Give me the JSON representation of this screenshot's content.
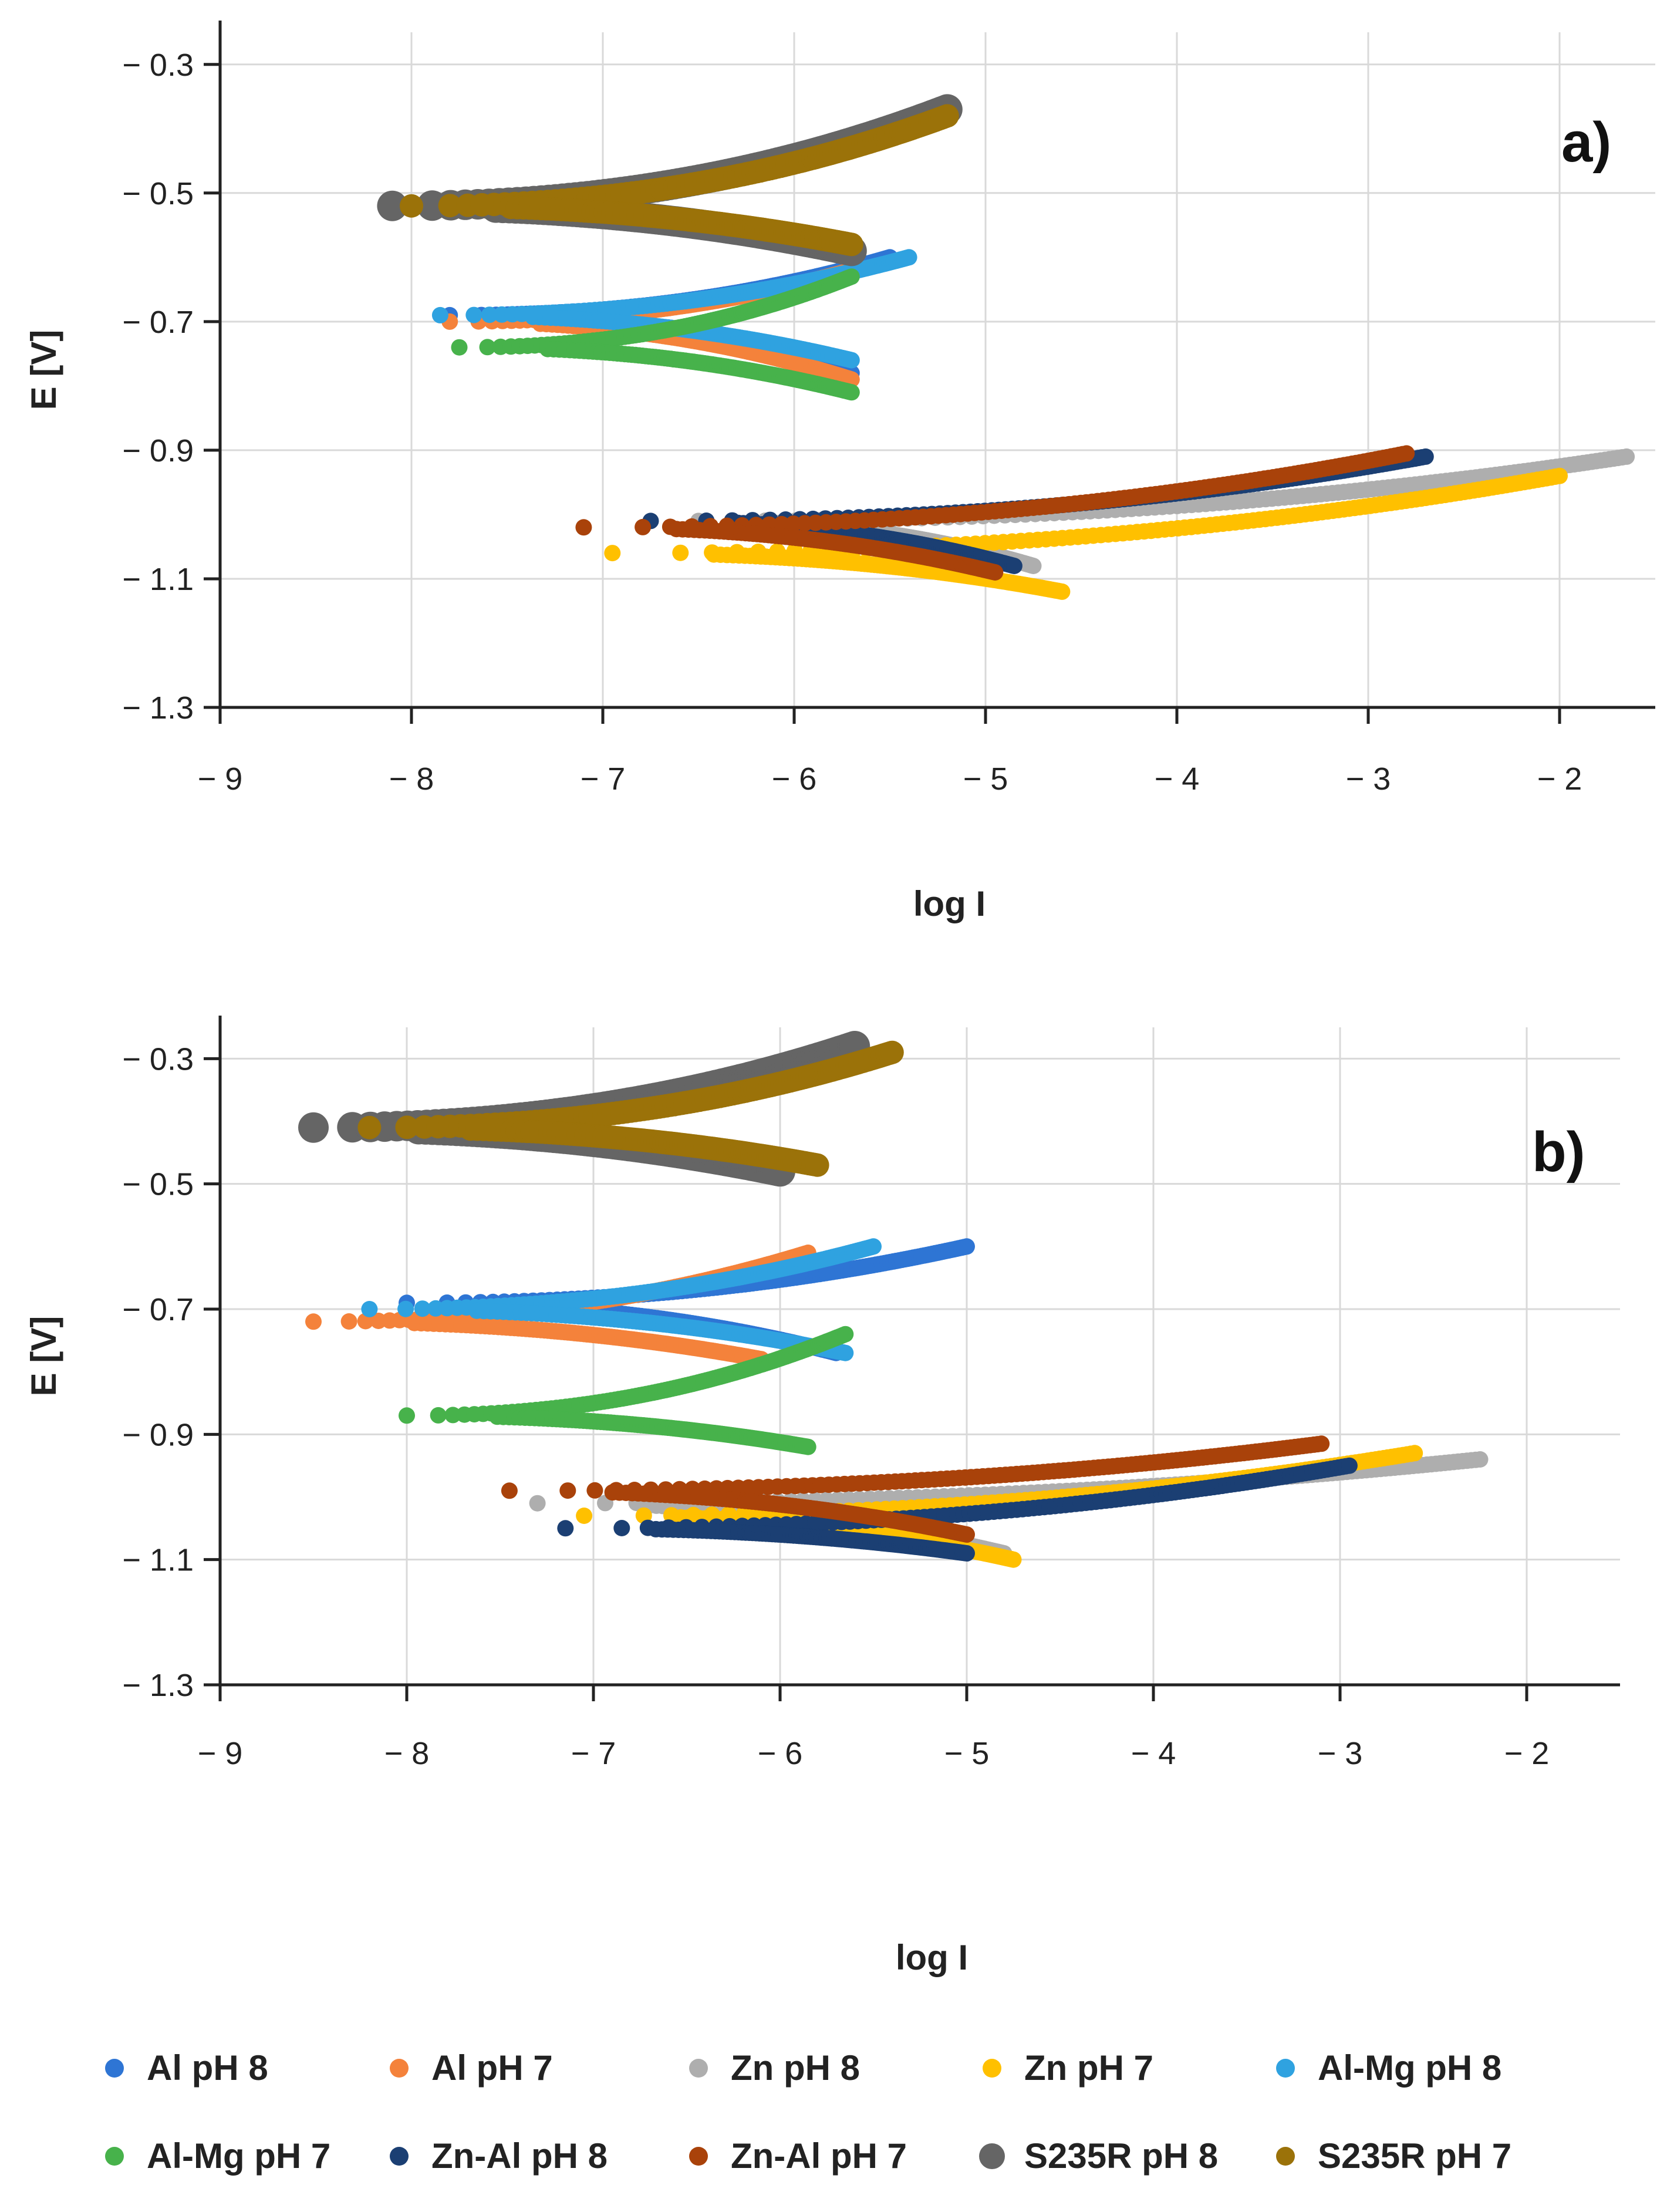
{
  "legend": [
    {
      "name": "Al pH 8",
      "color": "#2E75D4"
    },
    {
      "name": "Al pH 7",
      "color": "#F4823B"
    },
    {
      "name": "Zn pH 8",
      "color": "#AEAEAE"
    },
    {
      "name": "Zn pH 7",
      "color": "#FFC000"
    },
    {
      "name": "Al-Mg pH 8",
      "color": "#2FA2E0"
    },
    {
      "name": "Al-Mg pH 7",
      "color": "#47B24B"
    },
    {
      "name": "Zn-Al pH 8",
      "color": "#1B3F73"
    },
    {
      "name": "Zn-Al pH 7",
      "color": "#A9420A"
    },
    {
      "name": "S235R pH 8",
      "color": "#656565"
    },
    {
      "name": "S235R pH 7",
      "color": "#9B7209"
    }
  ],
  "chart_data": [
    {
      "type": "scatter",
      "panel_label": "a)",
      "title": "",
      "xlabel": "log I",
      "ylabel": "E [V]",
      "xlim": [
        -9,
        -1.5
      ],
      "ylim": [
        -1.3,
        -0.25
      ],
      "xticks": [
        -9,
        -8,
        -7,
        -6,
        -5,
        -4,
        -3,
        -2
      ],
      "xtick_labels": [
        "− 9",
        "− 8",
        "− 7",
        "− 6",
        "− 5",
        "− 4",
        "− 3",
        "− 2"
      ],
      "yticks": [
        -1.3,
        -1.1,
        -0.9,
        -0.7,
        -0.5,
        -0.3
      ],
      "ytick_labels": [
        "− 1.3",
        "− 1.1",
        "− 0.9",
        "− 0.7",
        "− 0.5",
        "− 0.3"
      ],
      "grid": true,
      "series": [
        {
          "name": "Al pH 8",
          "Ecorr": -0.69,
          "logIcorr": -7.8,
          "anodic_end": [
            -5.5,
            -0.6
          ],
          "cathodic_end": [
            -5.7,
            -0.78
          ]
        },
        {
          "name": "Al pH 7",
          "Ecorr": -0.7,
          "logIcorr": -7.8,
          "anodic_end": [
            -5.7,
            -0.62
          ],
          "cathodic_end": [
            -5.7,
            -0.79
          ]
        },
        {
          "name": "Zn pH 8",
          "Ecorr": -1.01,
          "logIcorr": -6.5,
          "anodic_end": [
            -1.65,
            -0.91
          ],
          "cathodic_end": [
            -4.75,
            -1.08
          ]
        },
        {
          "name": "Zn pH 7",
          "Ecorr": -1.06,
          "logIcorr": -6.95,
          "anodic_end": [
            -2.0,
            -0.94
          ],
          "cathodic_end": [
            -4.6,
            -1.12
          ]
        },
        {
          "name": "Al-Mg pH 8",
          "Ecorr": -0.69,
          "logIcorr": -7.85,
          "anodic_end": [
            -5.4,
            -0.6
          ],
          "cathodic_end": [
            -5.7,
            -0.76
          ]
        },
        {
          "name": "Al-Mg pH 7",
          "Ecorr": -0.74,
          "logIcorr": -7.75,
          "anodic_end": [
            -5.7,
            -0.63
          ],
          "cathodic_end": [
            -5.7,
            -0.81
          ]
        },
        {
          "name": "Zn-Al pH 8",
          "Ecorr": -1.01,
          "logIcorr": -6.75,
          "anodic_end": [
            -2.7,
            -0.91
          ],
          "cathodic_end": [
            -4.85,
            -1.08
          ]
        },
        {
          "name": "Zn-Al pH 7",
          "Ecorr": -1.02,
          "logIcorr": -7.1,
          "anodic_end": [
            -2.8,
            -0.905
          ],
          "cathodic_end": [
            -4.95,
            -1.09
          ]
        },
        {
          "name": "S235R pH 8",
          "Ecorr": -0.52,
          "logIcorr": -8.1,
          "anodic_end": [
            -5.2,
            -0.37
          ],
          "cathodic_end": [
            -5.7,
            -0.59
          ]
        },
        {
          "name": "S235R pH 7",
          "Ecorr": -0.52,
          "logIcorr": -8.0,
          "anodic_end": [
            -5.2,
            -0.38
          ],
          "cathodic_end": [
            -5.7,
            -0.58
          ]
        }
      ]
    },
    {
      "type": "scatter",
      "panel_label": "b)",
      "title": "",
      "xlabel": "log I",
      "ylabel": "E [V]",
      "xlim": [
        -9,
        -1.5
      ],
      "ylim": [
        -1.3,
        -0.25
      ],
      "xticks": [
        -9,
        -8,
        -7,
        -6,
        -5,
        -4,
        -3,
        -2
      ],
      "xtick_labels": [
        "− 9",
        "− 8",
        "− 7",
        "− 6",
        "− 5",
        "− 4",
        "− 3",
        "− 2"
      ],
      "yticks": [
        -1.3,
        -1.1,
        -0.9,
        -0.7,
        -0.5,
        -0.3
      ],
      "ytick_labels": [
        "− 1.3",
        "− 1.1",
        "− 0.9",
        "− 0.7",
        "− 0.5",
        "− 0.3"
      ],
      "grid": true,
      "series": [
        {
          "name": "Al pH 8",
          "Ecorr": -0.69,
          "logIcorr": -8.0,
          "anodic_end": [
            -5.0,
            -0.6
          ],
          "cathodic_end": [
            -5.7,
            -0.77
          ]
        },
        {
          "name": "Al pH 7",
          "Ecorr": -0.72,
          "logIcorr": -8.5,
          "anodic_end": [
            -5.85,
            -0.61
          ],
          "cathodic_end": [
            -6.1,
            -0.78
          ]
        },
        {
          "name": "Zn pH 8",
          "Ecorr": -1.01,
          "logIcorr": -7.3,
          "anodic_end": [
            -2.25,
            -0.94
          ],
          "cathodic_end": [
            -4.8,
            -1.09
          ]
        },
        {
          "name": "Zn pH 7",
          "Ecorr": -1.03,
          "logIcorr": -7.05,
          "anodic_end": [
            -2.6,
            -0.93
          ],
          "cathodic_end": [
            -4.75,
            -1.1
          ]
        },
        {
          "name": "Al-Mg pH 8",
          "Ecorr": -0.7,
          "logIcorr": -8.2,
          "anodic_end": [
            -5.5,
            -0.6
          ],
          "cathodic_end": [
            -5.65,
            -0.77
          ]
        },
        {
          "name": "Al-Mg pH 7",
          "Ecorr": -0.87,
          "logIcorr": -8.0,
          "anodic_end": [
            -5.65,
            -0.74
          ],
          "cathodic_end": [
            -5.85,
            -0.92
          ]
        },
        {
          "name": "Zn-Al pH 8",
          "Ecorr": -1.05,
          "logIcorr": -7.15,
          "anodic_end": [
            -2.95,
            -0.95
          ],
          "cathodic_end": [
            -5.0,
            -1.09
          ]
        },
        {
          "name": "Zn-Al pH 7",
          "Ecorr": -0.99,
          "logIcorr": -7.45,
          "anodic_end": [
            -3.1,
            -0.915
          ],
          "cathodic_end": [
            -5.0,
            -1.06
          ]
        },
        {
          "name": "S235R pH 8",
          "Ecorr": -0.41,
          "logIcorr": -8.5,
          "anodic_end": [
            -5.6,
            -0.28
          ],
          "cathodic_end": [
            -6.0,
            -0.48
          ]
        },
        {
          "name": "S235R pH 7",
          "Ecorr": -0.41,
          "logIcorr": -8.2,
          "anodic_end": [
            -5.4,
            -0.29
          ],
          "cathodic_end": [
            -5.8,
            -0.47
          ]
        }
      ]
    }
  ]
}
